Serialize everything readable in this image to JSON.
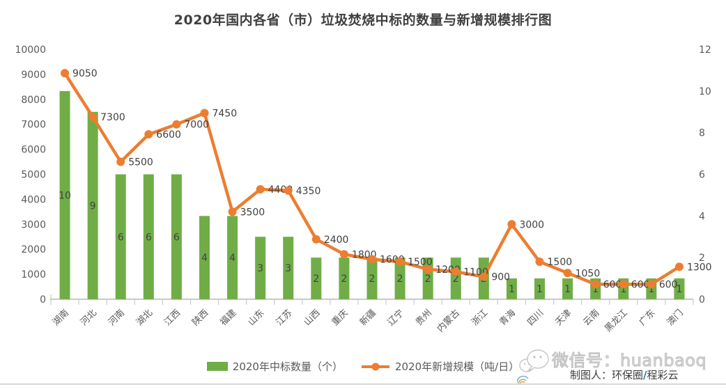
{
  "chart_data": {
    "type": "combo",
    "title": "2020年国内各省（市）垃圾焚烧中标的数量与新增规模排行图",
    "categories": [
      "湖南",
      "河北",
      "河南",
      "湖北",
      "江西",
      "陕西",
      "福建",
      "山东",
      "江苏",
      "山西",
      "重庆",
      "新疆",
      "辽宁",
      "贵州",
      "内蒙古",
      "浙江",
      "青海",
      "四川",
      "天津",
      "云南",
      "黑龙江",
      "广东",
      "澳门"
    ],
    "series": [
      {
        "name": "2020年中标数量（个）",
        "type": "bar",
        "axis": "right",
        "color": "#70AD47",
        "values": [
          10,
          9,
          6,
          6,
          6,
          4,
          4,
          3,
          3,
          2,
          2,
          2,
          2,
          2,
          2,
          2,
          1,
          1,
          1,
          1,
          1,
          1,
          1
        ]
      },
      {
        "name": "2020年新增规模（吨/日）",
        "type": "line",
        "axis": "left",
        "color": "#ED7D31",
        "values": [
          9050,
          7300,
          5500,
          6600,
          7000,
          7450,
          3500,
          4400,
          4350,
          2400,
          1800,
          1600,
          1500,
          1200,
          1100,
          900,
          3000,
          1500,
          1050,
          600,
          600,
          600,
          1300
        ]
      }
    ],
    "left_axis": {
      "min": 0,
      "max": 10000,
      "step": 1000,
      "ticks": [
        0,
        1000,
        2000,
        3000,
        4000,
        5000,
        6000,
        7000,
        8000,
        9000,
        10000
      ]
    },
    "right_axis": {
      "min": 0,
      "max": 12,
      "step": 2,
      "ticks": [
        0,
        2,
        4,
        6,
        8,
        10,
        12
      ]
    },
    "grid": false,
    "legend_position": "bottom",
    "data_labels": true
  },
  "watermark": {
    "wechat_id": "微信号：huanbaoq",
    "author_prefix": "制图人：环保圈",
    "author_slash": "/",
    "author_suffix": "程彩云"
  },
  "colors": {
    "bar": "#70AD47",
    "line": "#ED7D31",
    "axis_text": "#595959",
    "label_text": "#404040",
    "axis_line": "#c9c9c9",
    "legend_text": "#595959",
    "watermark_gray": "#c6c6c6",
    "slash_blue": "#2e75b6"
  }
}
